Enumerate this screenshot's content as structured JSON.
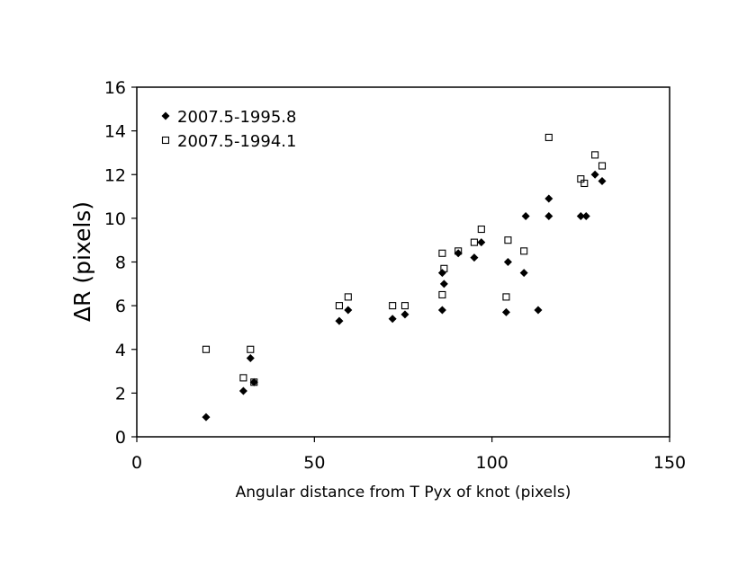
{
  "chart_data": {
    "type": "scatter",
    "title": "",
    "xlabel": "Angular distance from T Pyx of knot (pixels)",
    "ylabel": "ΔR (pixels)",
    "xlim": [
      0,
      150
    ],
    "ylim": [
      0,
      16
    ],
    "x_ticks": [
      0,
      50,
      100,
      150
    ],
    "y_ticks": [
      0,
      2,
      4,
      6,
      8,
      10,
      12,
      14,
      16
    ],
    "grid": false,
    "legend_position": "top-left",
    "series": [
      {
        "name": "2007.5-1995.8",
        "marker": "diamond-filled",
        "color": "#000000",
        "points": [
          [
            19.5,
            0.9
          ],
          [
            30,
            2.1
          ],
          [
            32,
            3.6
          ],
          [
            33,
            2.5
          ],
          [
            57,
            5.3
          ],
          [
            59.5,
            5.8
          ],
          [
            72,
            5.4
          ],
          [
            75.5,
            5.6
          ],
          [
            86,
            5.8
          ],
          [
            86,
            7.5
          ],
          [
            86.5,
            7.0
          ],
          [
            90.5,
            8.4
          ],
          [
            95,
            8.2
          ],
          [
            97,
            8.9
          ],
          [
            104,
            5.7
          ],
          [
            104.5,
            8.0
          ],
          [
            109,
            7.5
          ],
          [
            109.5,
            10.1
          ],
          [
            113,
            5.8
          ],
          [
            116,
            10.9
          ],
          [
            116,
            10.1
          ],
          [
            125,
            10.1
          ],
          [
            126.5,
            10.1
          ],
          [
            129,
            12.0
          ],
          [
            131,
            11.7
          ]
        ]
      },
      {
        "name": "2007.5-1994.1",
        "marker": "square-open",
        "color": "#000000",
        "points": [
          [
            19.5,
            4.0
          ],
          [
            30,
            2.7
          ],
          [
            32,
            4.0
          ],
          [
            33,
            2.5
          ],
          [
            57,
            6.0
          ],
          [
            59.5,
            6.4
          ],
          [
            72,
            6.0
          ],
          [
            75.5,
            6.0
          ],
          [
            86,
            6.5
          ],
          [
            86,
            8.4
          ],
          [
            86.5,
            7.7
          ],
          [
            90.5,
            8.5
          ],
          [
            95,
            8.9
          ],
          [
            97,
            9.5
          ],
          [
            104,
            6.4
          ],
          [
            104.5,
            9.0
          ],
          [
            109,
            8.5
          ],
          [
            116,
            13.7
          ],
          [
            125,
            11.8
          ],
          [
            126,
            11.6
          ],
          [
            129,
            12.9
          ],
          [
            131,
            12.4
          ]
        ]
      }
    ]
  }
}
